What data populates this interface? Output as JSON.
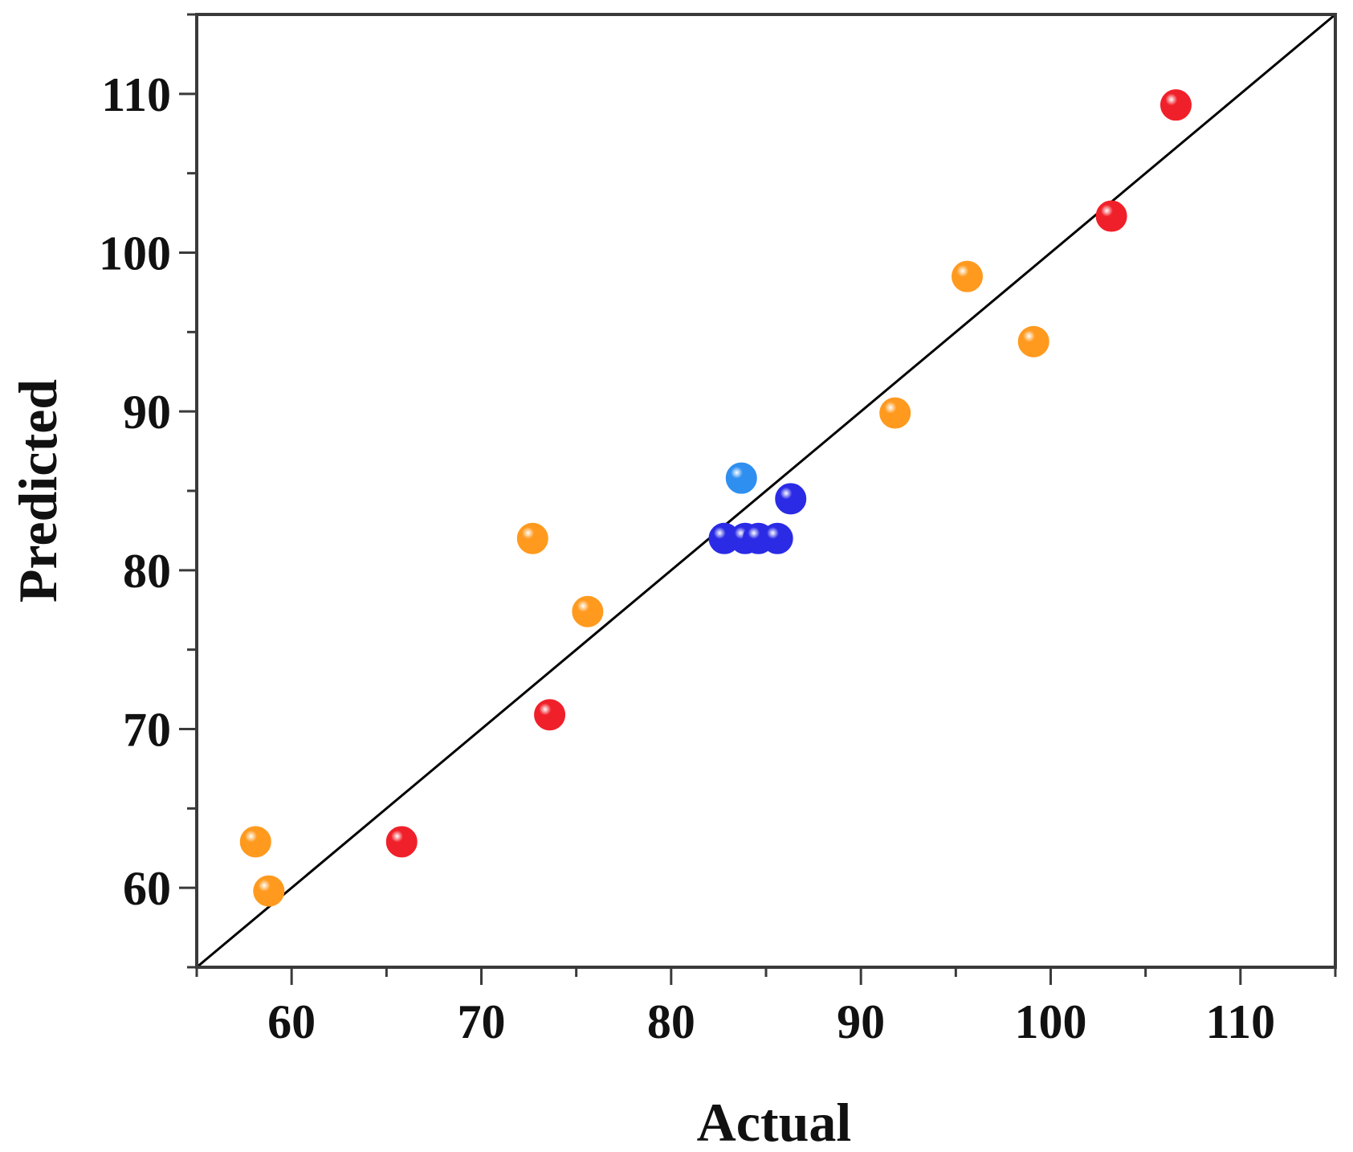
{
  "chart_data": {
    "type": "scatter",
    "xlabel": "Actual",
    "ylabel": "Predicted",
    "xlim": [
      55,
      115
    ],
    "ylim": [
      55,
      115
    ],
    "x_ticks": [
      60,
      70,
      80,
      90,
      100,
      110
    ],
    "y_ticks": [
      60,
      70,
      80,
      90,
      100,
      110
    ],
    "grid": false,
    "reference_line": {
      "from": [
        55,
        55
      ],
      "to": [
        115,
        115
      ],
      "color": "#000000"
    },
    "series": [
      {
        "color": "#ff9a1f",
        "points": [
          {
            "x": 58.1,
            "y": 62.9
          },
          {
            "x": 58.8,
            "y": 59.8
          },
          {
            "x": 72.7,
            "y": 82.0
          },
          {
            "x": 75.6,
            "y": 77.4
          },
          {
            "x": 91.8,
            "y": 89.9
          },
          {
            "x": 95.6,
            "y": 98.5
          },
          {
            "x": 99.1,
            "y": 94.4
          }
        ]
      },
      {
        "color": "#f0202a",
        "points": [
          {
            "x": 65.8,
            "y": 62.9
          },
          {
            "x": 73.6,
            "y": 70.9
          },
          {
            "x": 103.2,
            "y": 102.3
          },
          {
            "x": 106.6,
            "y": 109.3
          }
        ]
      },
      {
        "color": "#2b2be6",
        "points": [
          {
            "x": 82.8,
            "y": 82.0
          },
          {
            "x": 83.9,
            "y": 82.0
          },
          {
            "x": 84.6,
            "y": 82.0
          },
          {
            "x": 85.6,
            "y": 82.0
          },
          {
            "x": 86.3,
            "y": 84.5
          }
        ]
      },
      {
        "color": "#2e8ff0",
        "points": [
          {
            "x": 83.7,
            "y": 85.8
          }
        ]
      }
    ]
  }
}
